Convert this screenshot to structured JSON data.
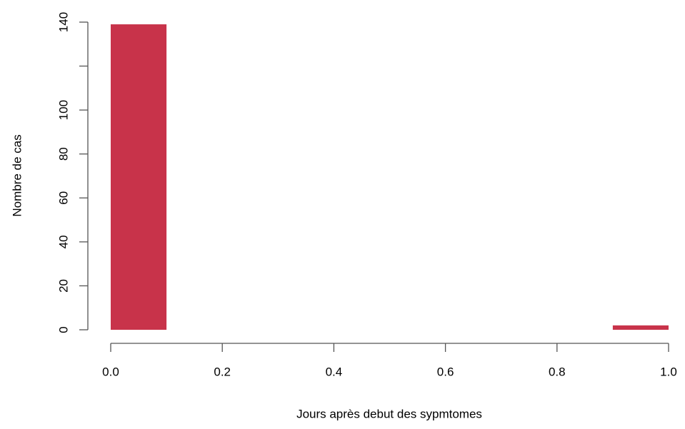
{
  "chart_data": {
    "type": "histogram",
    "x_label": "Jours après debut des sypmtomes",
    "y_label": "Nombre de cas",
    "bins": [
      0,
      0.1,
      0.2,
      0.3,
      0.4,
      0.5,
      0.6,
      0.7,
      0.8,
      0.9,
      1.0
    ],
    "counts": [
      139,
      0,
      0,
      0,
      0,
      0,
      0,
      0,
      0,
      2
    ],
    "color": "#c8334a",
    "xlim": [
      0,
      1
    ],
    "ylim": [
      0,
      140
    ],
    "xticks": [
      {
        "value": 0,
        "label": "0.0"
      },
      {
        "value": 0.2,
        "label": "0.2"
      },
      {
        "value": 0.4,
        "label": "0.4"
      },
      {
        "value": 0.6,
        "label": "0.6"
      },
      {
        "value": 0.8,
        "label": "0.8"
      },
      {
        "value": 1,
        "label": "1.0"
      }
    ],
    "yticks": [
      0,
      20,
      40,
      60,
      80,
      100,
      {
        "value": 120,
        "label": null
      },
      140
    ],
    "grid": false
  }
}
